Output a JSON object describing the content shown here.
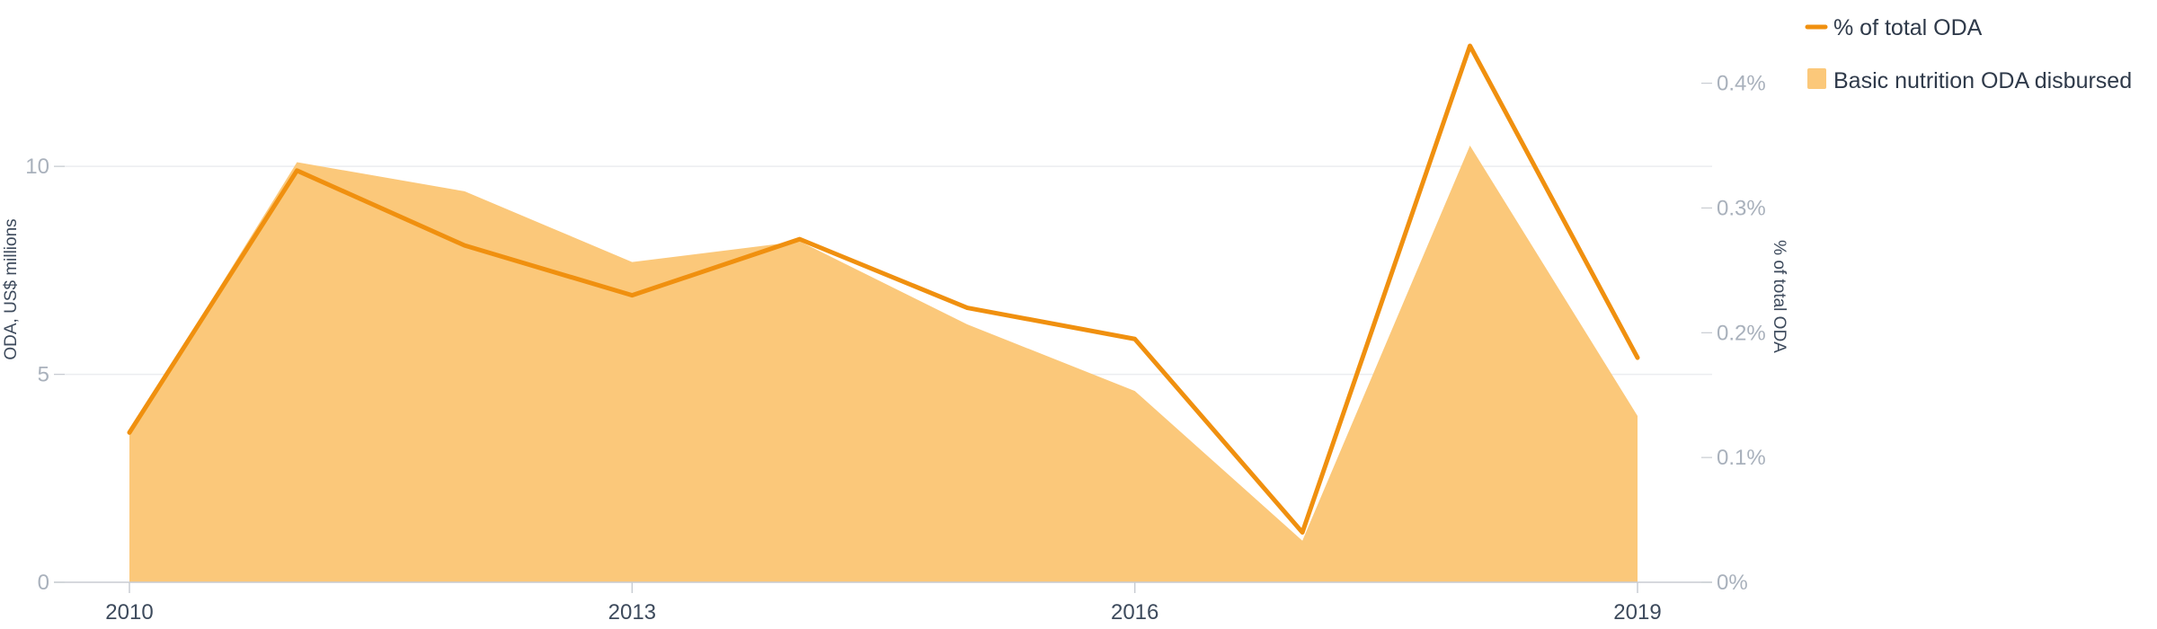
{
  "chart_data": {
    "type": "area+line",
    "x": [
      2010,
      2011,
      2012,
      2013,
      2014,
      2015,
      2016,
      2017,
      2018,
      2019
    ],
    "series": [
      {
        "name": "Basic nutrition ODA disbursed",
        "kind": "area",
        "axis": "left",
        "color": "#fbc87a",
        "values": [
          3.6,
          10.1,
          9.4,
          7.7,
          8.2,
          6.2,
          4.6,
          1.0,
          10.5,
          4.0
        ]
      },
      {
        "name": "% of total ODA",
        "kind": "line",
        "axis": "right",
        "color": "#f0900f",
        "values": [
          0.12,
          0.33,
          0.27,
          0.23,
          0.275,
          0.22,
          0.195,
          0.04,
          0.43,
          0.18
        ]
      }
    ],
    "y_left": {
      "title": "ODA, US$ millions",
      "ylim": [
        0,
        14
      ],
      "ticks": [
        0,
        5,
        10
      ],
      "tick_labels": [
        "0",
        "5",
        "10"
      ]
    },
    "y_right": {
      "title": "% of total ODA",
      "ylim": [
        0,
        0.4667
      ],
      "ticks": [
        0,
        0.1,
        0.2,
        0.3,
        0.4
      ],
      "tick_labels": [
        "0%",
        "0.1%",
        "0.2%",
        "0.3%",
        "0.4%"
      ]
    },
    "x_axis": {
      "ticks": [
        2010,
        2013,
        2016,
        2019
      ],
      "tick_labels": [
        "2010",
        "2013",
        "2016",
        "2019"
      ]
    },
    "grid": true,
    "legend": {
      "placement": "top-right",
      "entries": [
        "% of total ODA",
        "Basic nutrition ODA disbursed"
      ]
    }
  }
}
